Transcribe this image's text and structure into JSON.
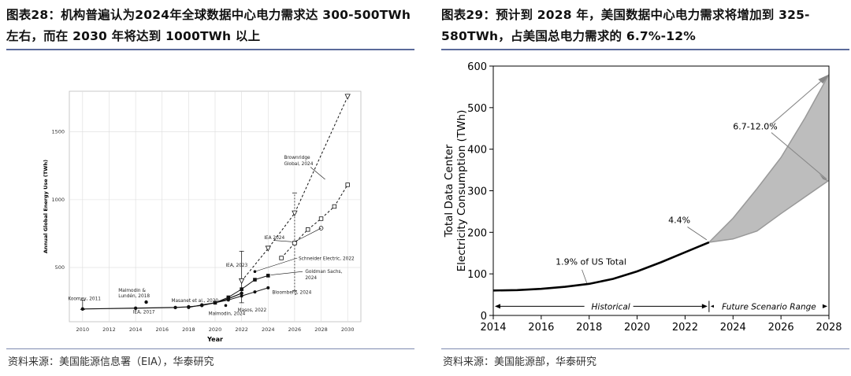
{
  "left": {
    "figure_title": "图表28：机构普遍认为2024年全球数据中心电力需求达 300-500TWh 左右，而在 2030 年将达到 1000TWh 以上",
    "source": "资料来源：美国能源信息署（EIA），华泰研究",
    "chart_data": {
      "type": "scatter",
      "xlabel": "Year",
      "ylabel": "Annual Global Energy Use (TWh)",
      "x_ticks": [
        "2010",
        "2012",
        "2014",
        "2016",
        "2018",
        "2020",
        "2022",
        "2024",
        "2026",
        "2028",
        "2030"
      ],
      "y_ticks": [
        "500",
        "1000",
        "1500"
      ],
      "xlim": [
        2009,
        2031
      ],
      "ylim": [
        100,
        1800
      ],
      "grid": true,
      "baseline_series": {
        "x": [
          2010,
          2014,
          2017,
          2018,
          2019,
          2020,
          2021,
          2022
        ],
        "y": [
          194,
          200,
          205,
          210,
          220,
          240,
          270,
          310
        ]
      },
      "series": [
        {
          "label": "Brownridge Global, 2024",
          "style": "dashed",
          "marker": "triangle",
          "x": [
            2022,
            2024,
            2026,
            2030
          ],
          "y": [
            400,
            640,
            900,
            1760
          ]
        },
        {
          "label": "Goldman Sachs, 2024",
          "style": "solid",
          "marker": "square",
          "x": [
            2020,
            2021,
            2022,
            2023,
            2024
          ],
          "y": [
            240,
            280,
            340,
            410,
            440
          ]
        },
        {
          "label": "Schneider Electric, 2022",
          "style": "dashed",
          "marker": "square-open",
          "x": [
            2025,
            2026,
            2027,
            2028,
            2029,
            2030
          ],
          "y": [
            570,
            680,
            780,
            860,
            950,
            1110
          ]
        },
        {
          "label": "Bloomberg, 2024",
          "style": "solid",
          "marker": "dot",
          "x": [
            2018,
            2019,
            2020,
            2021,
            2022,
            2023,
            2024
          ],
          "y": [
            205,
            225,
            240,
            260,
            290,
            320,
            350
          ]
        }
      ],
      "annotations": [
        {
          "label": "Koomey, 2011",
          "x": 2010,
          "y": 200
        },
        {
          "label": "Malmodin & Lundén, 2018",
          "x": 2015,
          "y": 240
        },
        {
          "label": "Masanet et al., 2020",
          "x": 2018,
          "y": 205
        },
        {
          "label": "IEA, 2017",
          "x": 2014,
          "y": 200
        },
        {
          "label": "Malmodin, 2024",
          "x": 2020,
          "y": 210
        },
        {
          "label": "Masos, 2022",
          "x": 2021,
          "y": 220
        },
        {
          "label": "IEA, 2023",
          "x": 2022,
          "y": 400
        },
        {
          "label": "IEA 2024",
          "x": 2026,
          "y": 680
        }
      ],
      "error_bars": [
        {
          "x": 2010,
          "low": 190,
          "high": 260
        },
        {
          "x": 2022,
          "low": 240,
          "high": 620
        },
        {
          "x": 2026,
          "low": 330,
          "high": 1050
        }
      ]
    }
  },
  "right": {
    "figure_title": "图表29：预计到 2028 年，美国数据中心电力需求将增加到 325-580TWh，占美国总电力需求的 6.7%-12%",
    "source": "资料来源：美国能源部，华泰研究",
    "chart_data": {
      "type": "line",
      "xlabel": "",
      "ylabel": "Total Data Center Electricity Consumption (TWh)",
      "x_ticks": [
        "2014",
        "2016",
        "2018",
        "2020",
        "2022",
        "2024",
        "2026",
        "2028"
      ],
      "y_ticks": [
        "0",
        "100",
        "200",
        "300",
        "400",
        "500",
        "600"
      ],
      "xlim": [
        2014,
        2028
      ],
      "ylim": [
        0,
        600
      ],
      "grid": false,
      "historical": {
        "x": [
          2014,
          2015,
          2016,
          2017,
          2018,
          2019,
          2020,
          2021,
          2022,
          2023
        ],
        "y": [
          60,
          61,
          64,
          69,
          76,
          88,
          106,
          128,
          152,
          176
        ]
      },
      "scenario_low": {
        "x": [
          2023,
          2024,
          2025,
          2026,
          2027,
          2028
        ],
        "y": [
          176,
          184,
          203,
          245,
          285,
          325
        ]
      },
      "scenario_high": {
        "x": [
          2023,
          2024,
          2025,
          2026,
          2027,
          2028
        ],
        "y": [
          176,
          234,
          305,
          380,
          475,
          580
        ]
      },
      "annotations": {
        "us_share_2014": "1.9% of US Total",
        "us_share_2023": "4.4%",
        "us_share_2028": "6.7-12.0%",
        "historical_label": "Historical",
        "future_label": "Future Scenario Range"
      }
    }
  }
}
